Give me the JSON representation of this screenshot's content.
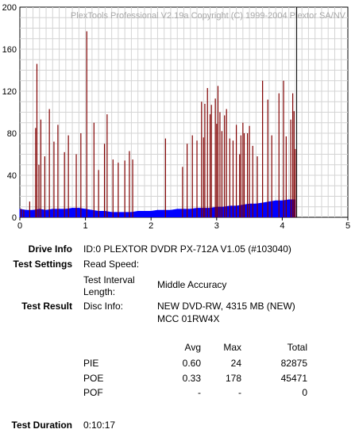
{
  "chart_data": {
    "type": "bar",
    "title": "PlexTools Professional V2.19a Copyright (C) 1999-2004 Plextor SA/NV",
    "xlim": [
      0,
      5
    ],
    "ylim": [
      0,
      200
    ],
    "x_ticks": [
      "0",
      "1",
      "2",
      "3",
      "4",
      "5"
    ],
    "y_ticks": [
      "0",
      "40",
      "80",
      "120",
      "160",
      "200"
    ],
    "grid": true,
    "end_marker_x": 4.22,
    "series": [
      {
        "name": "PIE",
        "color": "#0000ff",
        "x": [
          0.0,
          0.1,
          0.2,
          0.3,
          0.4,
          0.5,
          0.6,
          0.7,
          0.8,
          0.9,
          1.0,
          1.1,
          1.2,
          1.3,
          1.4,
          1.5,
          1.6,
          1.7,
          1.8,
          1.9,
          2.0,
          2.1,
          2.2,
          2.3,
          2.4,
          2.5,
          2.6,
          2.7,
          2.8,
          2.9,
          3.0,
          3.1,
          3.2,
          3.3,
          3.4,
          3.5,
          3.6,
          3.7,
          3.8,
          3.9,
          4.0,
          4.1,
          4.2
        ],
        "values": [
          8,
          7,
          7,
          8,
          7,
          8,
          8,
          8,
          9,
          9,
          8,
          7,
          6,
          6,
          5,
          5,
          5,
          5,
          6,
          6,
          6,
          7,
          7,
          7,
          8,
          8,
          8,
          9,
          9,
          9,
          10,
          10,
          11,
          11,
          12,
          13,
          13,
          14,
          15,
          16,
          16,
          17,
          17
        ]
      },
      {
        "name": "POE",
        "color": "#800000",
        "x": [
          0.02,
          0.06,
          0.15,
          0.24,
          0.26,
          0.29,
          0.32,
          0.38,
          0.45,
          0.52,
          0.58,
          0.68,
          0.74,
          0.86,
          0.93,
          1.02,
          1.13,
          1.2,
          1.29,
          1.33,
          1.42,
          1.5,
          1.6,
          1.67,
          1.72,
          2.22,
          2.48,
          2.55,
          2.63,
          2.7,
          2.77,
          2.8,
          2.82,
          2.86,
          2.9,
          2.92,
          2.98,
          3.0,
          3.02,
          3.05,
          3.08,
          3.12,
          3.15,
          3.2,
          3.25,
          3.3,
          3.35,
          3.37,
          3.4,
          3.42,
          3.47,
          3.5,
          3.55,
          3.62,
          3.7,
          3.78,
          3.84,
          3.95,
          4.02,
          4.06,
          4.13,
          4.16,
          4.18,
          4.2
        ],
        "values": [
          8,
          7,
          15,
          85,
          146,
          50,
          93,
          58,
          103,
          72,
          88,
          62,
          78,
          60,
          80,
          177,
          90,
          45,
          70,
          98,
          55,
          52,
          54,
          63,
          55,
          75,
          48,
          70,
          78,
          73,
          110,
          76,
          108,
          123,
          98,
          107,
          113,
          89,
          125,
          100,
          82,
          97,
          103,
          75,
          73,
          88,
          60,
          78,
          90,
          80,
          80,
          87,
          68,
          58,
          130,
          112,
          78,
          118,
          130,
          77,
          93,
          118,
          101,
          65
        ]
      }
    ]
  },
  "drive_info": {
    "label": "Drive Info",
    "value": "ID:0 PLEXTOR DVDR PX-712A V1.05 (#103040)"
  },
  "test_settings": {
    "label": "Test Settings",
    "read_speed_label": "Read Speed:",
    "read_speed_value": "",
    "interval_label_1": "Test Interval",
    "interval_label_2": "Length:",
    "interval_value": "Middle Accuracy"
  },
  "test_result": {
    "label": "Test Result",
    "disc_info_label": "Disc Info:",
    "disc_info_line1": "NEW DVD-RW, 4315 MB (NEW)",
    "disc_info_line2": "MCC 01RW4X",
    "headers": {
      "avg": "Avg",
      "max": "Max",
      "total": "Total"
    },
    "rows": [
      {
        "name": "PIE",
        "avg": "0.60",
        "max": "24",
        "total": "82875"
      },
      {
        "name": "POE",
        "avg": "0.33",
        "max": "178",
        "total": "45471"
      },
      {
        "name": "POF",
        "avg": "-",
        "max": "-",
        "total": "0"
      }
    ]
  },
  "test_duration": {
    "label": "Test Duration",
    "value": "0:10:17"
  }
}
